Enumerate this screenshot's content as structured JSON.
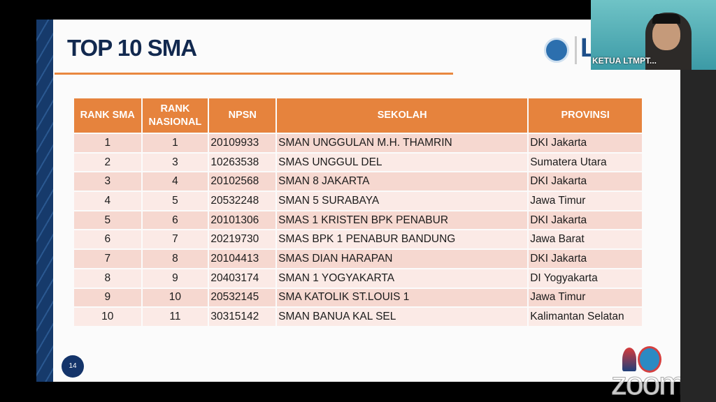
{
  "slide": {
    "title": "TOP 10 SMA",
    "page_number": "14",
    "table": {
      "headers": [
        "RANK SMA",
        "RANK NASIONAL",
        "NPSN",
        "SEKOLAH",
        "PROVINSI"
      ],
      "header_color": "#e6833d",
      "rows": [
        [
          "1",
          "1",
          "20109933",
          "SMAN UNGGULAN M.H. THAMRIN",
          "DKI Jakarta"
        ],
        [
          "2",
          "3",
          "10263538",
          "SMAS UNGGUL DEL",
          "Sumatera Utara"
        ],
        [
          "3",
          "4",
          "20102568",
          "SMAN 8 JAKARTA",
          "DKI Jakarta"
        ],
        [
          "4",
          "5",
          "20532248",
          "SMAN 5 SURABAYA",
          "Jawa Timur"
        ],
        [
          "5",
          "6",
          "20101306",
          "SMAS 1 KRISTEN BPK PENABUR",
          "DKI Jakarta"
        ],
        [
          "6",
          "7",
          "20219730",
          "SMAS BPK 1 PENABUR BANDUNG",
          "Jawa Barat"
        ],
        [
          "7",
          "8",
          "20104413",
          "SMAS DIAN HARAPAN",
          "DKI Jakarta"
        ],
        [
          "8",
          "9",
          "20403174",
          "SMAN 1 YOGYAKARTA",
          "DI Yogyakarta"
        ],
        [
          "9",
          "10",
          "20532145",
          "SMA KATOLIK ST.LOUIS 1",
          "Jawa Timur"
        ],
        [
          "10",
          "11",
          "30315142",
          "SMAN BANUA KAL SEL",
          "Kalimantan Selatan"
        ]
      ]
    }
  },
  "video": {
    "participant_name": "KETUA LTMPT..."
  },
  "watermark": "zoom"
}
